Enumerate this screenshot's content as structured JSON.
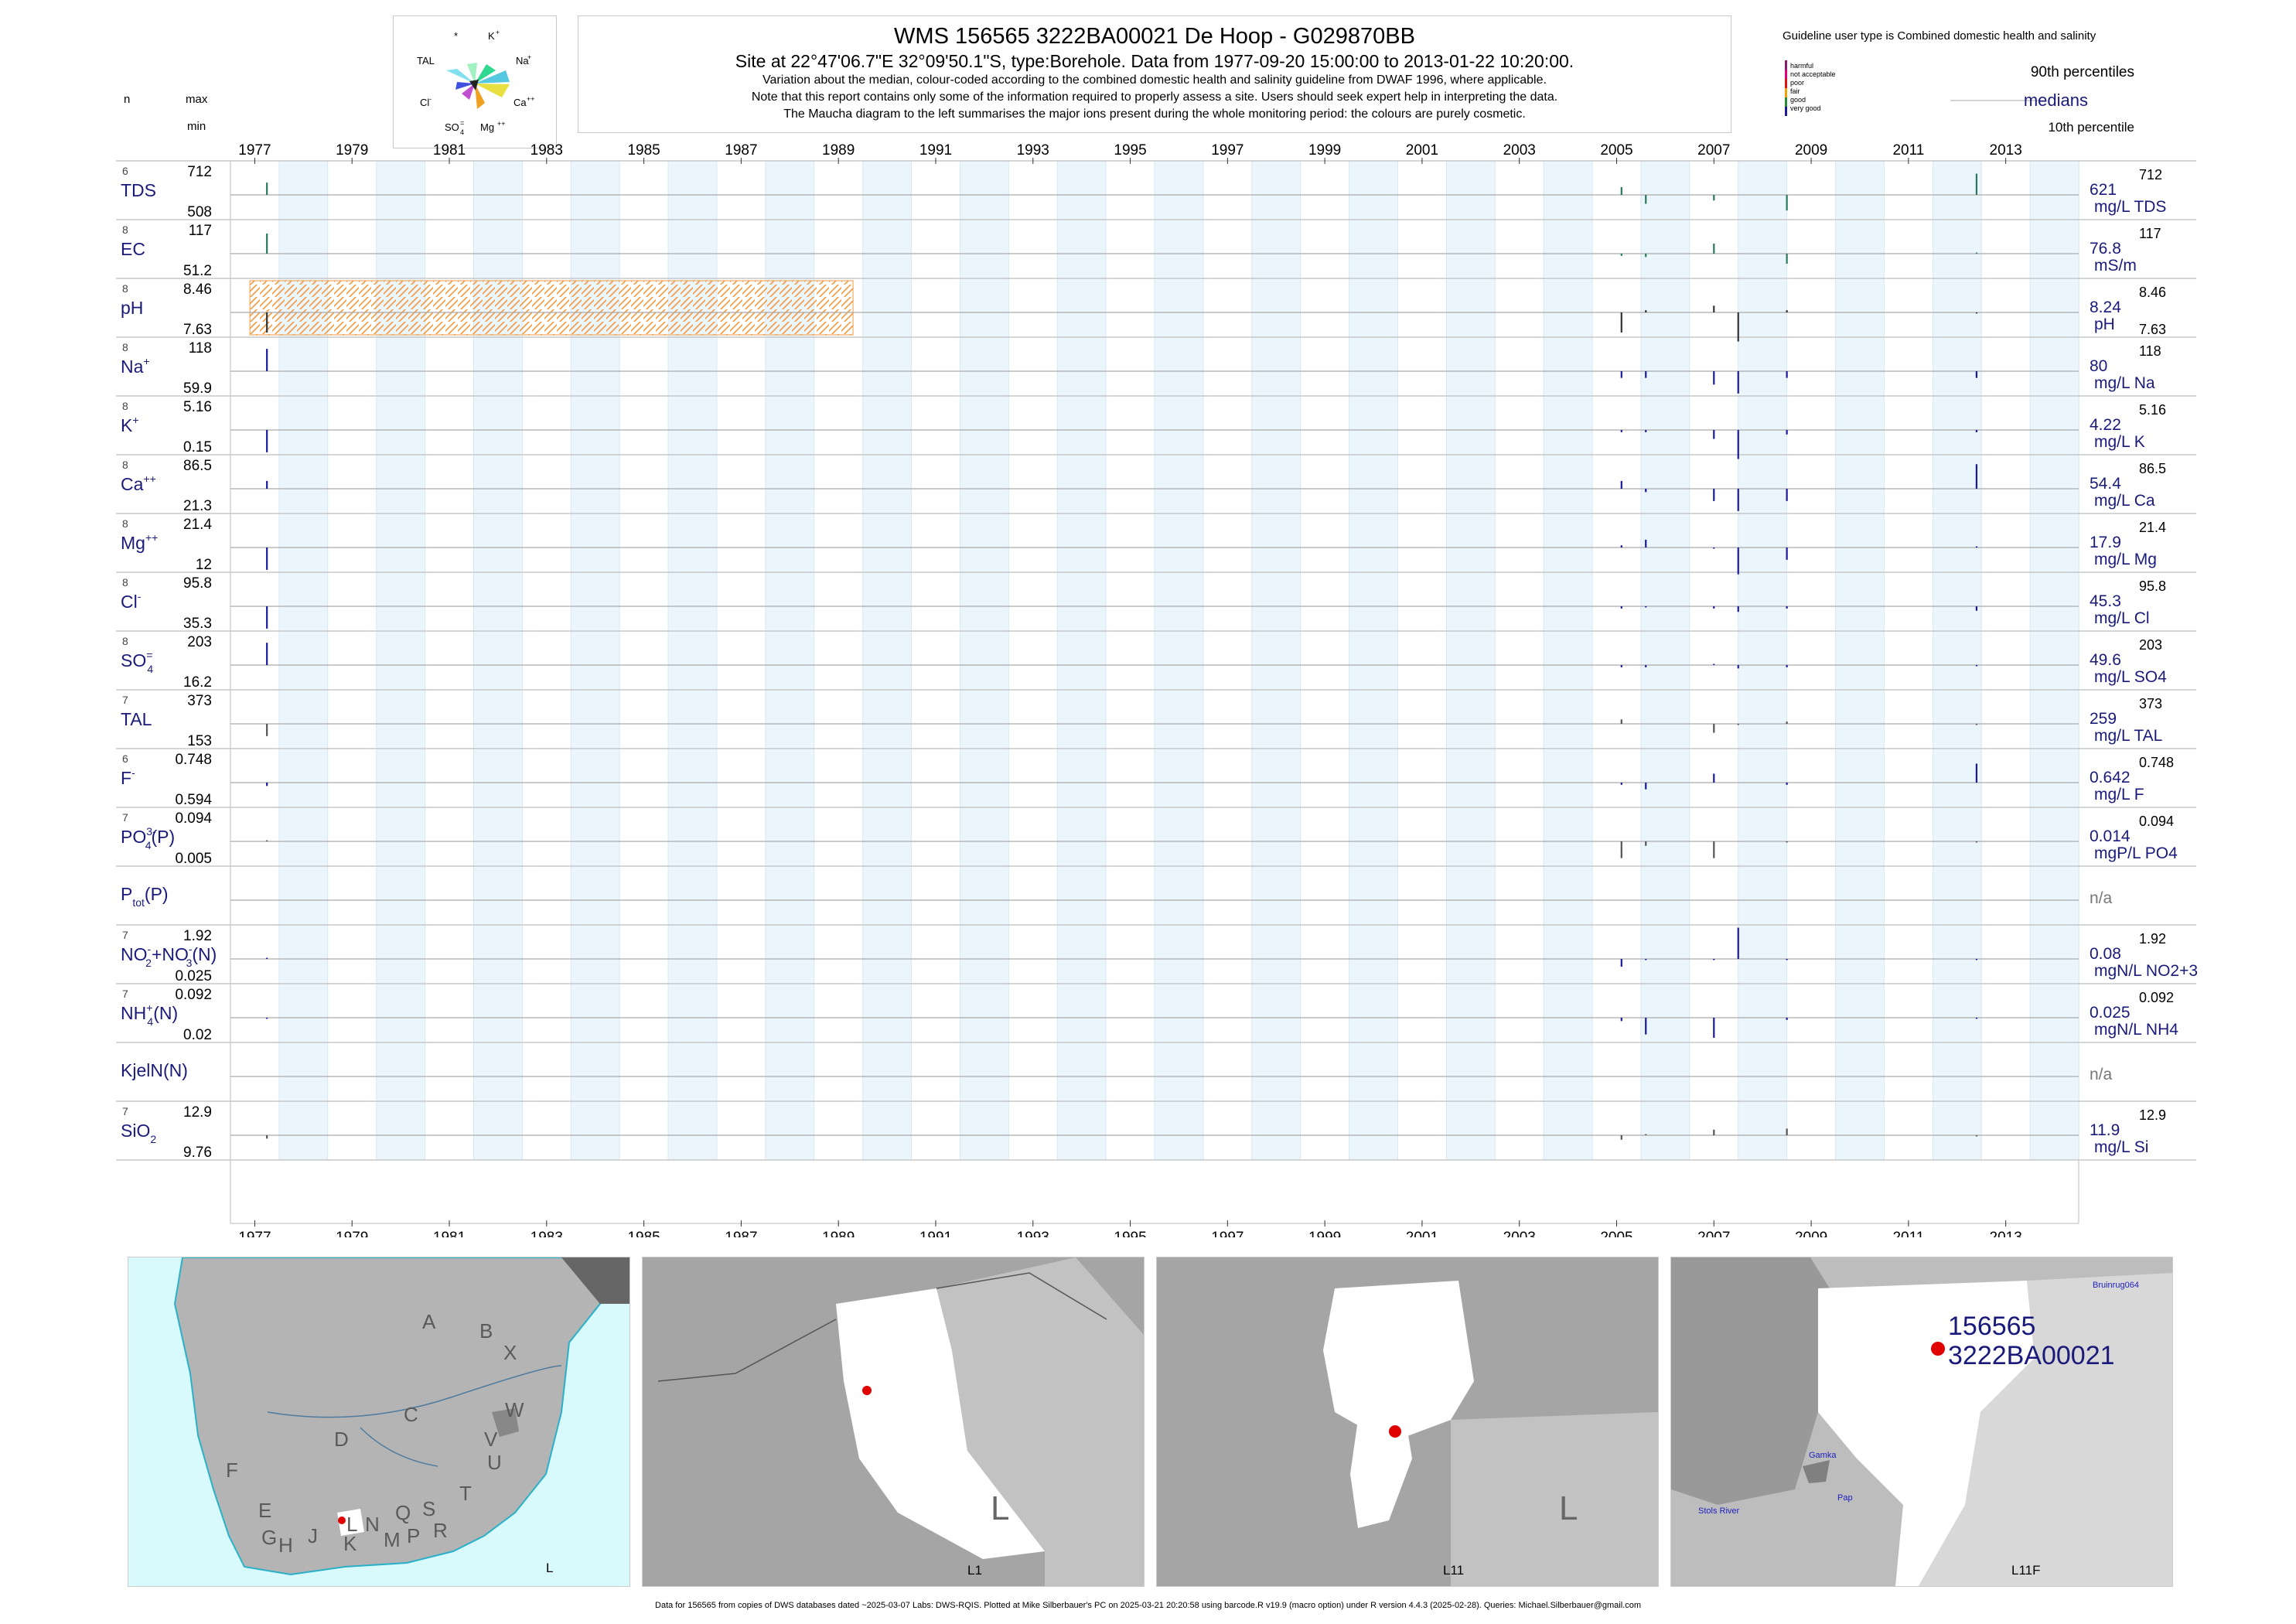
{
  "header": {
    "n_label": "n",
    "max_label": "max",
    "min_label": "min",
    "title": "WMS 156565 3222BA00021 De Hoop - G029870BB",
    "subtitle": "Site at 22°47'06.7\"E 32°09'50.1\"S, type:Borehole.  Data from 1977-09-20 15:00:00 to 2013-01-22 10:20:00.",
    "notes": [
      "Variation about the median,  colour-coded according to the combined domestic health and salinity guideline from DWAF 1996, where applicable.",
      "Note that this report contains only some of the information required to properly assess a site. Users should seek expert help in interpreting the data.",
      "The Maucha diagram to the left summarises the major ions present during the whole monitoring period: the colours are purely cosmetic."
    ]
  },
  "maucha": {
    "labels": {
      "star": "*",
      "k": "K",
      "k_sup": "+",
      "tal": "TAL",
      "na": "Na",
      "na_sup": "+",
      "cl": "Cl",
      "cl_sup": "-",
      "ca": "Ca",
      "ca_sup": "++",
      "so4": "SO",
      "so4_sub": "4",
      "so4_sup": "=",
      "mg": "Mg",
      "mg_sup": "++"
    }
  },
  "legend": {
    "title": "Guideline user type is Combined domestic health and salinity",
    "items": [
      {
        "label": "harmful",
        "color": "#8b1a6b"
      },
      {
        "label": "not acceptable",
        "color": "#e0007a"
      },
      {
        "label": "poor",
        "color": "#e01010"
      },
      {
        "label": "fair",
        "color": "#f0a000"
      },
      {
        "label": "good",
        "color": "#2a8a3a"
      },
      {
        "label": "very good",
        "color": "#1a1aa0"
      }
    ],
    "p90": "90th percentiles",
    "medians": "medians",
    "p10": "10th percentile"
  },
  "chart_data": {
    "type": "timeseries-strip",
    "x_range": [
      1977,
      2015
    ],
    "x_ticks": [
      1977,
      1979,
      1981,
      1983,
      1985,
      1987,
      1989,
      1991,
      1993,
      1995,
      1997,
      1999,
      2001,
      2003,
      2005,
      2007,
      2009,
      2011,
      2013
    ],
    "hatch_range": [
      1977.4,
      1989.8
    ],
    "rows": [
      {
        "name": "TDS",
        "label": "TDS",
        "n": "6",
        "max": "712",
        "min": "508",
        "median": "621",
        "unit": "mg/L TDS",
        "rmax": "712",
        "rmin": "",
        "color": "#2a7a5a",
        "samples": [
          {
            "x": 1977.75,
            "v": 0.55
          },
          {
            "x": 2005.6,
            "v": 0.35
          },
          {
            "x": 2006.1,
            "v": -0.4
          },
          {
            "x": 2007.5,
            "v": -0.25
          },
          {
            "x": 2009.0,
            "v": -0.7
          },
          {
            "x": 2012.9,
            "v": 0.95
          }
        ]
      },
      {
        "name": "EC",
        "label": "EC",
        "n": "8",
        "max": "117",
        "min": "51.2",
        "median": "76.8",
        "unit": "mS/m",
        "rmax": "117",
        "rmin": "",
        "color": "#2a7a5a",
        "samples": [
          {
            "x": 1977.75,
            "v": 0.9
          },
          {
            "x": 2005.6,
            "v": -0.1
          },
          {
            "x": 2006.1,
            "v": -0.15
          },
          {
            "x": 2007.5,
            "v": 0.45
          },
          {
            "x": 2009.0,
            "v": -0.45
          },
          {
            "x": 2012.9,
            "v": 0.05
          }
        ]
      },
      {
        "name": "pH",
        "label": "pH",
        "n": "8",
        "max": "8.46",
        "min": "7.63",
        "median": "8.24",
        "unit": "pH",
        "rmax": "8.46",
        "rmin": "7.63",
        "color": "#333333",
        "samples": [
          {
            "x": 1977.75,
            "v": -0.9
          },
          {
            "x": 2005.6,
            "v": -0.9
          },
          {
            "x": 2006.1,
            "v": 0.1
          },
          {
            "x": 2007.5,
            "v": 0.3
          },
          {
            "x": 2008.0,
            "v": -1.3
          },
          {
            "x": 2009.0,
            "v": 0.1
          },
          {
            "x": 2012.9,
            "v": -0.05
          }
        ]
      },
      {
        "name": "Na",
        "label": "Na",
        "sup": "+",
        "n": "8",
        "max": "118",
        "min": "59.9",
        "median": "80",
        "unit": "mg/L Na",
        "rmax": "118",
        "rmin": "",
        "color": "#1a1aa0",
        "samples": [
          {
            "x": 1977.75,
            "v": 1.0
          },
          {
            "x": 2005.6,
            "v": -0.3
          },
          {
            "x": 2006.1,
            "v": -0.3
          },
          {
            "x": 2007.5,
            "v": -0.6
          },
          {
            "x": 2008.0,
            "v": -1.0
          },
          {
            "x": 2009.0,
            "v": -0.3
          },
          {
            "x": 2012.9,
            "v": -0.3
          }
        ]
      },
      {
        "name": "K",
        "label": "K",
        "sup": "+",
        "n": "8",
        "max": "5.16",
        "min": "0.15",
        "median": "4.22",
        "unit": "mg/L K",
        "rmax": "5.16",
        "rmin": "",
        "color": "#1a1aa0",
        "samples": [
          {
            "x": 1977.75,
            "v": -1.0
          },
          {
            "x": 2005.6,
            "v": -0.1
          },
          {
            "x": 2006.1,
            "v": -0.1
          },
          {
            "x": 2007.5,
            "v": -0.4
          },
          {
            "x": 2008.0,
            "v": -1.3
          },
          {
            "x": 2009.0,
            "v": -0.2
          },
          {
            "x": 2012.9,
            "v": -0.1
          }
        ]
      },
      {
        "name": "Ca",
        "label": "Ca",
        "sup": "++",
        "n": "8",
        "max": "86.5",
        "min": "21.3",
        "median": "54.4",
        "unit": "mg/L Ca",
        "rmax": "86.5",
        "rmin": "",
        "color": "#1a1aa0",
        "samples": [
          {
            "x": 1977.75,
            "v": 0.35
          },
          {
            "x": 2005.6,
            "v": 0.35
          },
          {
            "x": 2006.1,
            "v": -0.15
          },
          {
            "x": 2007.5,
            "v": -0.55
          },
          {
            "x": 2008.0,
            "v": -1.0
          },
          {
            "x": 2009.0,
            "v": -0.55
          },
          {
            "x": 2012.9,
            "v": 1.1
          }
        ]
      },
      {
        "name": "Mg",
        "label": "Mg",
        "sup": "++",
        "n": "8",
        "max": "21.4",
        "min": "12",
        "median": "17.9",
        "unit": "mg/L Mg",
        "rmax": "21.4",
        "rmin": "",
        "color": "#1a1aa0",
        "samples": [
          {
            "x": 1977.75,
            "v": -1.0
          },
          {
            "x": 2005.6,
            "v": 0.1
          },
          {
            "x": 2006.1,
            "v": 0.35
          },
          {
            "x": 2007.5,
            "v": -0.05
          },
          {
            "x": 2008.0,
            "v": -1.2
          },
          {
            "x": 2009.0,
            "v": -0.55
          },
          {
            "x": 2012.9,
            "v": 0.05
          }
        ]
      },
      {
        "name": "Cl",
        "label": "Cl",
        "sup": "-",
        "n": "8",
        "max": "95.8",
        "min": "35.3",
        "median": "45.3",
        "unit": "mg/L Cl",
        "rmax": "95.8",
        "rmin": "",
        "color": "#1a1aa0",
        "samples": [
          {
            "x": 1977.75,
            "v": -1.0
          },
          {
            "x": 2005.6,
            "v": -0.1
          },
          {
            "x": 2006.1,
            "v": -0.05
          },
          {
            "x": 2007.5,
            "v": -0.1
          },
          {
            "x": 2008.0,
            "v": -0.25
          },
          {
            "x": 2009.0,
            "v": -0.1
          },
          {
            "x": 2012.9,
            "v": -0.2
          }
        ]
      },
      {
        "name": "SO4",
        "label": "SO",
        "sub": "4",
        "sup": "=",
        "n": "8",
        "max": "203",
        "min": "16.2",
        "median": "49.6",
        "unit": "mg/L SO4",
        "rmax": "203",
        "rmin": "",
        "color": "#1a1aa0",
        "samples": [
          {
            "x": 1977.75,
            "v": 1.0
          },
          {
            "x": 2005.6,
            "v": -0.1
          },
          {
            "x": 2006.1,
            "v": -0.1
          },
          {
            "x": 2007.5,
            "v": 0.05
          },
          {
            "x": 2008.0,
            "v": -0.15
          },
          {
            "x": 2009.0,
            "v": -0.1
          },
          {
            "x": 2012.9,
            "v": -0.05
          }
        ]
      },
      {
        "name": "TAL",
        "label": "TAL",
        "n": "7",
        "max": "373",
        "min": "153",
        "median": "259",
        "unit": "mg/L TAL",
        "rmax": "373",
        "rmin": "",
        "color": "#555555",
        "samples": [
          {
            "x": 1977.75,
            "v": -0.55
          },
          {
            "x": 2005.6,
            "v": 0.2
          },
          {
            "x": 2007.5,
            "v": -0.4
          },
          {
            "x": 2008.0,
            "v": -0.05
          },
          {
            "x": 2009.0,
            "v": 0.1
          },
          {
            "x": 2012.9,
            "v": -0.05
          }
        ]
      },
      {
        "name": "F",
        "label": "F",
        "sup": "-",
        "n": "6",
        "max": "0.748",
        "min": "0.594",
        "median": "0.642",
        "unit": "mg/L F",
        "rmax": "0.748",
        "rmin": "",
        "color": "#1a1aa0",
        "samples": [
          {
            "x": 1977.75,
            "v": -0.15
          },
          {
            "x": 2005.6,
            "v": -0.1
          },
          {
            "x": 2006.1,
            "v": -0.3
          },
          {
            "x": 2007.5,
            "v": 0.4
          },
          {
            "x": 2009.0,
            "v": -0.1
          },
          {
            "x": 2012.9,
            "v": 0.85
          }
        ]
      },
      {
        "name": "PO4",
        "label": "PO",
        "sub": "4",
        "sup": "3-",
        "suffix": "(P)",
        "n": "7",
        "max": "0.094",
        "min": "0.005",
        "median": "0.014",
        "unit": "mgP/L PO4",
        "rmax": "0.094",
        "rmin": "",
        "color": "#555555",
        "samples": [
          {
            "x": 1977.75,
            "v": 0.05
          },
          {
            "x": 2005.6,
            "v": -0.75
          },
          {
            "x": 2006.1,
            "v": -0.2
          },
          {
            "x": 2007.5,
            "v": -0.75
          },
          {
            "x": 2009.0,
            "v": -0.05
          },
          {
            "x": 2012.9,
            "v": -0.05
          }
        ]
      },
      {
        "name": "Ptot",
        "label": "P",
        "sub": "tot",
        "suffix": "(P)",
        "n": "",
        "max": "",
        "min": "",
        "median": "n/a",
        "unit": "",
        "rmax": "",
        "rmin": "",
        "color": "#555555",
        "samples": []
      },
      {
        "name": "NO2NO3",
        "label": "NO",
        "sub": "2",
        "sup": "-",
        "mid": "+NO",
        "sub2": "3",
        "sup2": "-",
        "suffix": "(N)",
        "n": "7",
        "max": "1.92",
        "min": "0.025",
        "median": "0.08",
        "unit": "mgN/L NO2+3",
        "rmax": "1.92",
        "rmin": "",
        "color": "#1a1aa0",
        "samples": [
          {
            "x": 1977.75,
            "v": 0.05
          },
          {
            "x": 2005.6,
            "v": -0.35
          },
          {
            "x": 2006.1,
            "v": -0.05
          },
          {
            "x": 2007.5,
            "v": -0.05
          },
          {
            "x": 2008.0,
            "v": 1.4
          },
          {
            "x": 2009.0,
            "v": -0.05
          },
          {
            "x": 2012.9,
            "v": -0.05
          }
        ]
      },
      {
        "name": "NH4",
        "label": "NH",
        "sub": "4",
        "sup": "+",
        "suffix": "(N)",
        "n": "7",
        "max": "0.092",
        "min": "0.02",
        "median": "0.025",
        "unit": "mgN/L NH4",
        "rmax": "0.092",
        "rmin": "",
        "color": "#1a1aa0",
        "samples": [
          {
            "x": 1977.75,
            "v": -0.05
          },
          {
            "x": 2005.6,
            "v": -0.15
          },
          {
            "x": 2006.1,
            "v": -0.75
          },
          {
            "x": 2007.5,
            "v": -0.9
          },
          {
            "x": 2009.0,
            "v": -0.1
          },
          {
            "x": 2012.9,
            "v": -0.05
          }
        ]
      },
      {
        "name": "KjelN",
        "label": "KjelN(N)",
        "n": "",
        "max": "",
        "min": "",
        "median": "n/a",
        "unit": "",
        "rmax": "",
        "rmin": "",
        "color": "#555555",
        "samples": []
      },
      {
        "name": "SiO2",
        "label": "SiO",
        "sub": "2",
        "n": "7",
        "max": "12.9",
        "min": "9.76",
        "median": "11.9",
        "unit": "mg/L Si",
        "rmax": "12.9",
        "rmin": "",
        "color": "#555555",
        "samples": [
          {
            "x": 1977.75,
            "v": -0.15
          },
          {
            "x": 2005.6,
            "v": -0.2
          },
          {
            "x": 2006.1,
            "v": 0.05
          },
          {
            "x": 2007.5,
            "v": 0.25
          },
          {
            "x": 2009.0,
            "v": 0.3
          },
          {
            "x": 2012.9,
            "v": -0.05
          }
        ]
      }
    ]
  },
  "maps": {
    "m1": {
      "caption": "L",
      "regions": [
        "A",
        "B",
        "X",
        "C",
        "W",
        "D",
        "V",
        "U",
        "F",
        "T",
        "E",
        "S",
        "R",
        "Q",
        "P",
        "M",
        "N",
        "L",
        "K",
        "J",
        "H",
        "G"
      ]
    },
    "m2": {
      "caption": "L1",
      "big": "L"
    },
    "m3": {
      "caption": "L11",
      "big": "L"
    },
    "m4": {
      "caption": "L11F",
      "site1": "156565",
      "site2": "3222BA00021",
      "places": [
        "Bruinrug064",
        "Gamka",
        "Pap",
        "Stols River"
      ]
    }
  },
  "footer": "Data for 156565 from copies of DWS databases dated ~2025-03-07 Labs: DWS-RQIS. Plotted at Mike Silberbauer's PC on 2025-03-21 20:20:58 using barcode.R v19.9 (macro option) under R version 4.4.3 (2025-02-28). Queries: Michael.Silberbauer@gmail.com"
}
